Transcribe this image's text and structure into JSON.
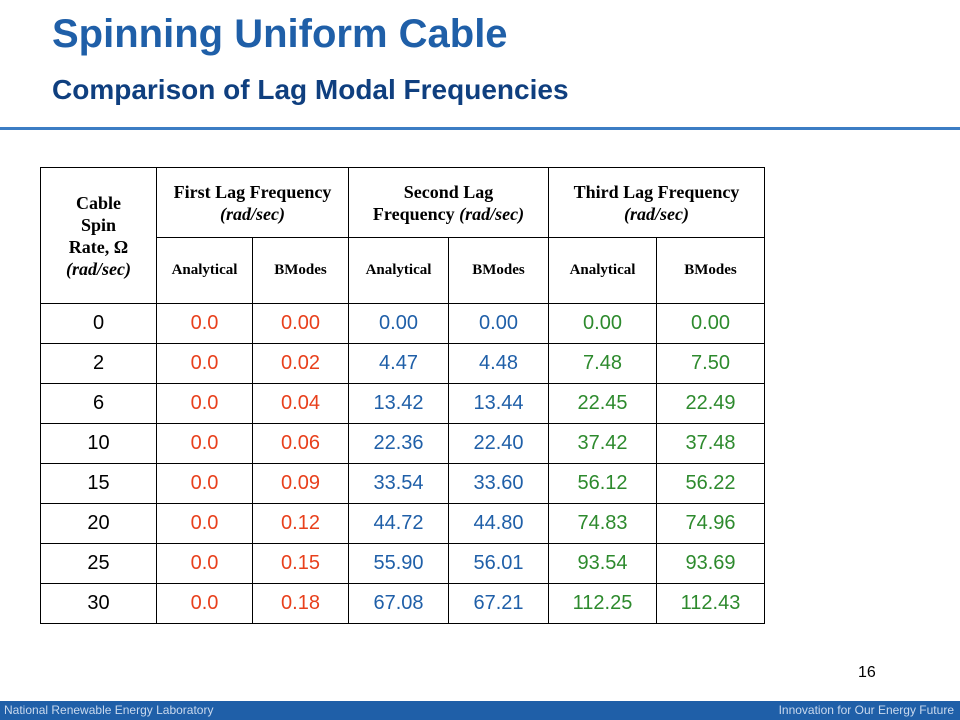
{
  "slide": {
    "title": "Spinning Uniform Cable",
    "subtitle": "Comparison of Lag Modal Frequencies",
    "page_number": "16"
  },
  "table": {
    "header": {
      "rate": {
        "line1": "Cable",
        "line2": "Spin",
        "line3": "Rate, Ω",
        "line4": "(rad/sec)"
      },
      "first": {
        "line1": "First Lag Frequency",
        "line2": "(rad/sec)"
      },
      "second": {
        "line1": "Second Lag",
        "line2": "Frequency",
        "line3": "(rad/sec)"
      },
      "third": {
        "line1": "Third Lag Frequency",
        "line2": "(rad/sec)"
      },
      "sub": [
        "Analytical",
        "BModes",
        "Analytical",
        "BModes",
        "Analytical",
        "BModes"
      ]
    },
    "rows": [
      [
        "0",
        "0.0",
        "0.00",
        "0.00",
        "0.00",
        "0.00",
        "0.00"
      ],
      [
        "2",
        "0.0",
        "0.02",
        "4.47",
        "4.48",
        "7.48",
        "7.50"
      ],
      [
        "6",
        "0.0",
        "0.04",
        "13.42",
        "13.44",
        "22.45",
        "22.49"
      ],
      [
        "10",
        "0.0",
        "0.06",
        "22.36",
        "22.40",
        "37.42",
        "37.48"
      ],
      [
        "15",
        "0.0",
        "0.09",
        "33.54",
        "33.60",
        "56.12",
        "56.22"
      ],
      [
        "20",
        "0.0",
        "0.12",
        "44.72",
        "44.80",
        "74.83",
        "74.96"
      ],
      [
        "25",
        "0.0",
        "0.15",
        "55.90",
        "56.01",
        "93.54",
        "93.69"
      ],
      [
        "30",
        "0.0",
        "0.18",
        "67.08",
        "67.21",
        "112.25",
        "112.43"
      ]
    ]
  },
  "footer": {
    "left": "National Renewable Energy Laboratory",
    "right": "Innovation for Our Energy Future"
  },
  "colors": {
    "title": "#1f5fa8",
    "subtitle": "#0f3f7f",
    "first_lag_values": "#e8401c",
    "second_lag_values": "#1f5fa8",
    "third_lag_values": "#2d8a2d",
    "footer_bar": "#1f5fa8"
  }
}
